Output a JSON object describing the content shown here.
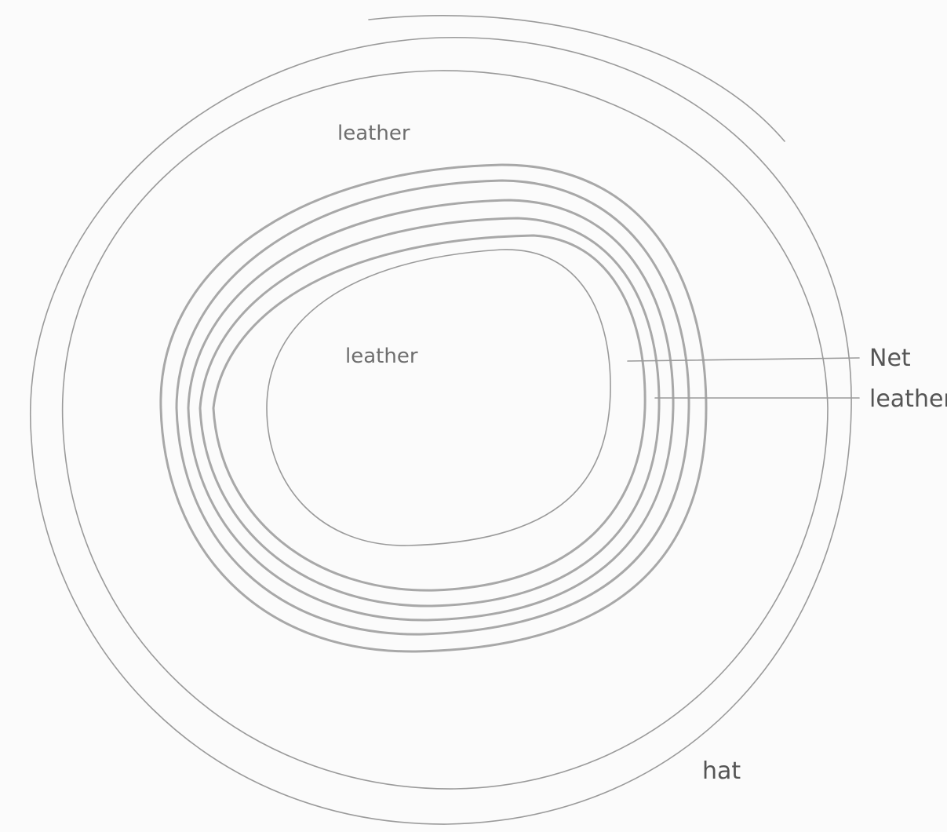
{
  "labels": [
    {
      "text": "leather"
    },
    {
      "text": "leather"
    },
    {
      "text": "Net"
    },
    {
      "text": "leather"
    },
    {
      "text": "hat"
    }
  ]
}
